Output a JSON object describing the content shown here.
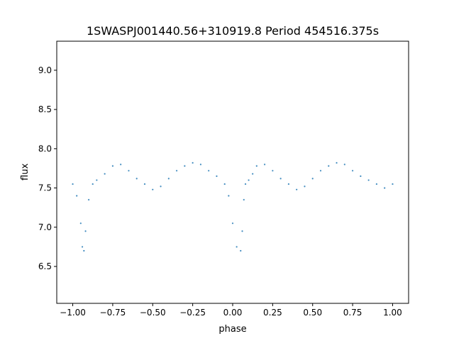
{
  "chart_data": {
    "type": "scatter",
    "title": "1SWASPJ001440.56+310919.8 Period 454516.375s",
    "xlabel": "phase",
    "ylabel": "flux",
    "xlim": [
      -1.1,
      1.1
    ],
    "ylim": [
      6.03,
      9.37
    ],
    "x_ticks": [
      -1.0,
      -0.75,
      -0.5,
      -0.25,
      0.0,
      0.25,
      0.5,
      0.75,
      1.0
    ],
    "x_tick_labels": [
      "−1.00",
      "−0.75",
      "−0.50",
      "−0.25",
      "0.00",
      "0.25",
      "0.50",
      "0.75",
      "1.00"
    ],
    "y_ticks": [
      6.5,
      7.0,
      7.5,
      8.0,
      8.5,
      9.0
    ],
    "y_tick_labels": [
      "6.5",
      "7.0",
      "7.5",
      "8.0",
      "8.5",
      "9.0"
    ],
    "grid": false,
    "legend": "none",
    "marker_color": "#1f77b4",
    "series": [
      {
        "x": [
          -1.0,
          -0.975,
          -0.95,
          -0.94,
          -0.93,
          -0.92,
          -0.9,
          -0.875,
          -0.85,
          -0.8,
          -0.75,
          -0.7,
          -0.65,
          -0.6,
          -0.55,
          -0.5,
          -0.45,
          -0.4,
          -0.35,
          -0.3,
          -0.25,
          -0.2,
          -0.15,
          -0.1,
          -0.05,
          -0.025,
          0.0,
          0.025,
          0.05,
          0.06,
          0.07,
          0.08,
          0.1,
          0.125,
          0.15,
          0.2,
          0.25,
          0.3,
          0.35,
          0.4,
          0.45,
          0.5,
          0.55,
          0.6,
          0.65,
          0.7,
          0.75,
          0.8,
          0.85,
          0.9,
          0.95,
          1.0
        ],
        "y": [
          7.55,
          7.4,
          7.05,
          6.75,
          6.7,
          6.95,
          7.35,
          7.55,
          7.6,
          7.68,
          7.78,
          7.8,
          7.72,
          7.62,
          7.55,
          7.48,
          7.52,
          7.62,
          7.72,
          7.78,
          7.82,
          7.8,
          7.72,
          7.65,
          7.55,
          7.4,
          7.05,
          6.75,
          6.7,
          6.95,
          7.35,
          7.55,
          7.6,
          7.68,
          7.78,
          7.8,
          7.72,
          7.62,
          7.55,
          7.48,
          7.52,
          7.62,
          7.72,
          7.78,
          7.82,
          7.8,
          7.72,
          7.65,
          7.6,
          7.55,
          7.5,
          7.55
        ]
      }
    ]
  }
}
